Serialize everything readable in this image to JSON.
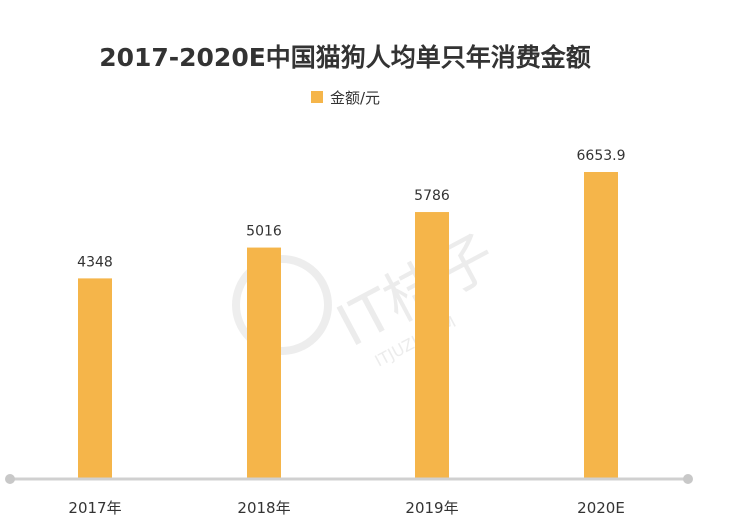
{
  "chart_data": {
    "type": "bar",
    "title": "2017-2020E中国猫狗人均单只年消费金额",
    "xlabel": "",
    "ylabel": "",
    "categories": [
      "2017年",
      "2018年",
      "2019年",
      "2020E"
    ],
    "series": [
      {
        "name": "金额/元",
        "values": [
          4348,
          5016,
          5786,
          6653.9
        ]
      }
    ],
    "value_labels": [
      "4348",
      "5016",
      "5786",
      "6653.9"
    ],
    "ylim": [
      0,
      8000
    ],
    "grid": false,
    "legend_position": "top-center",
    "bar_color": "#f5b54a"
  },
  "watermark": {
    "main": "IT桔子",
    "sub": "ITJUZI.COM"
  }
}
